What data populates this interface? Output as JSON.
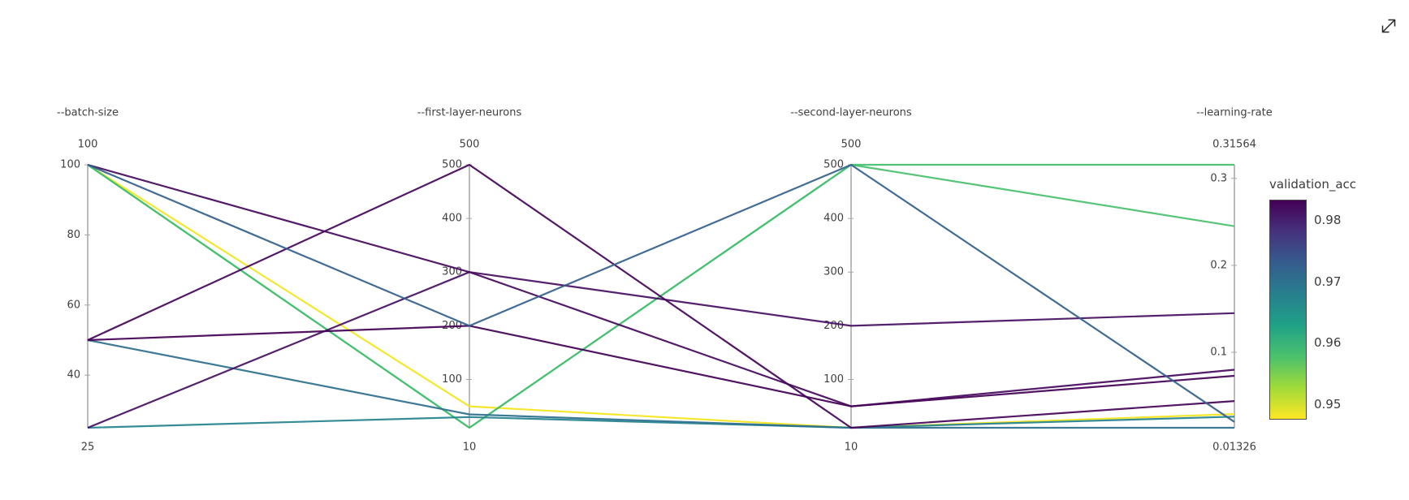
{
  "window": {
    "background_color": "#ffffff",
    "expand_icon": "diagonal-resize-arrow"
  },
  "chart_data": {
    "type": "parallel-coordinates",
    "description": "Hyperparameter sweep parallel coordinates plot colored by validation accuracy",
    "axes": [
      {
        "key": "batch_size",
        "title": "--batch-size",
        "top_label": "100",
        "bottom_label": "25",
        "min": 25,
        "max": 100,
        "ticks": [
          {
            "value": 100,
            "label": "100"
          },
          {
            "value": 80,
            "label": "80"
          },
          {
            "value": 60,
            "label": "60"
          },
          {
            "value": 40,
            "label": "40"
          }
        ]
      },
      {
        "key": "first_layer_neurons",
        "title": "--first-layer-neurons",
        "top_label": "500",
        "bottom_label": "10",
        "min": 10,
        "max": 500,
        "ticks": [
          {
            "value": 500,
            "label": "500"
          },
          {
            "value": 400,
            "label": "400"
          },
          {
            "value": 300,
            "label": "300"
          },
          {
            "value": 200,
            "label": "200"
          },
          {
            "value": 100,
            "label": "100"
          }
        ]
      },
      {
        "key": "second_layer_neurons",
        "title": "--second-layer-neurons",
        "top_label": "500",
        "bottom_label": "10",
        "min": 10,
        "max": 500,
        "ticks": [
          {
            "value": 500,
            "label": "500"
          },
          {
            "value": 400,
            "label": "400"
          },
          {
            "value": 300,
            "label": "300"
          },
          {
            "value": 200,
            "label": "200"
          },
          {
            "value": 100,
            "label": "100"
          }
        ]
      },
      {
        "key": "learning_rate",
        "title": "--learning-rate",
        "top_label": "0.31564",
        "bottom_label": "0.01326",
        "min": 0.01326,
        "max": 0.31564,
        "ticks": [
          {
            "value": 0.3,
            "label": "0.3"
          },
          {
            "value": 0.2,
            "label": "0.2"
          },
          {
            "value": 0.1,
            "label": "0.1"
          }
        ]
      }
    ],
    "runs": [
      {
        "batch_size": 100,
        "first_layer_neurons": 50,
        "second_layer_neurons": 10,
        "learning_rate": 0.029,
        "validation_acc": 0.9475,
        "color": "#f3e51e"
      },
      {
        "batch_size": 100,
        "first_layer_neurons": 10,
        "second_layer_neurons": 500,
        "learning_rate": 0.245,
        "validation_acc": 0.959,
        "color": "#4ac16d"
      },
      {
        "batch_size": 100,
        "first_layer_neurons": 10,
        "second_layer_neurons": 500,
        "learning_rate": 0.31564,
        "validation_acc": 0.96,
        "color": "#44bf70"
      },
      {
        "batch_size": 25,
        "first_layer_neurons": 30,
        "second_layer_neurons": 10,
        "learning_rate": 0.026,
        "validation_acc": 0.967,
        "color": "#26828e"
      },
      {
        "batch_size": 50,
        "first_layer_neurons": 35,
        "second_layer_neurons": 10,
        "learning_rate": 0.01326,
        "validation_acc": 0.969,
        "color": "#2d708e"
      },
      {
        "batch_size": 25,
        "first_layer_neurons": 300,
        "second_layer_neurons": 200,
        "learning_rate": 0.145,
        "validation_acc": 0.98,
        "color": "#471063"
      },
      {
        "batch_size": 100,
        "first_layer_neurons": 300,
        "second_layer_neurons": 50,
        "learning_rate": 0.08,
        "validation_acc": 0.981,
        "color": "#460a5e"
      },
      {
        "batch_size": 50,
        "first_layer_neurons": 500,
        "second_layer_neurons": 10,
        "learning_rate": 0.044,
        "validation_acc": 0.982,
        "color": "#450559"
      },
      {
        "batch_size": 50,
        "first_layer_neurons": 200,
        "second_layer_neurons": 50,
        "learning_rate": 0.073,
        "validation_acc": 0.983,
        "color": "#440256"
      },
      {
        "batch_size": 100,
        "first_layer_neurons": 200,
        "second_layer_neurons": 500,
        "learning_rate": 0.02,
        "validation_acc": 0.972,
        "color": "#34618d"
      }
    ],
    "colorbar": {
      "title": "validation_acc",
      "min": 0.9475,
      "max": 0.9833,
      "ticks": [
        {
          "value": 0.98,
          "label": "0.98"
        },
        {
          "value": 0.97,
          "label": "0.97"
        },
        {
          "value": 0.96,
          "label": "0.96"
        },
        {
          "value": 0.95,
          "label": "0.95"
        }
      ],
      "gradient_top_to_bottom": [
        "#440154",
        "#46327e",
        "#365c8d",
        "#277f8e",
        "#1fa187",
        "#4ac16d",
        "#a0da39",
        "#fde725"
      ]
    },
    "layout": {
      "axis_color": "#a6a6a6",
      "text_color": "#3f3f3f",
      "line_width": 2.2
    }
  }
}
